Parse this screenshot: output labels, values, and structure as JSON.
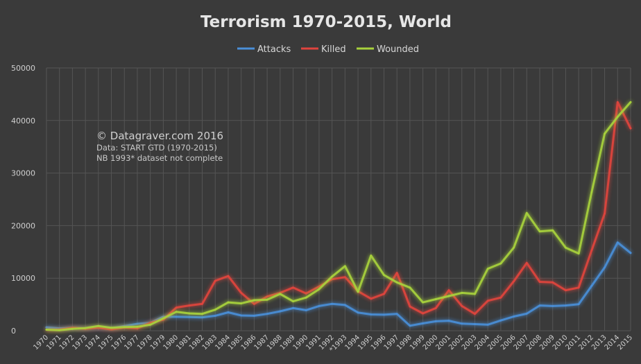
{
  "chart_data": {
    "type": "line",
    "title": "Terrorism 1970-2015, World",
    "categories": [
      "1970",
      "1971",
      "1972",
      "1973",
      "1974",
      "1975",
      "1976",
      "1977",
      "1978",
      "1979",
      "1980",
      "1981",
      "1982",
      "1983",
      "1984",
      "1985",
      "1986",
      "1987",
      "1988",
      "1989",
      "1990",
      "1991",
      "1992",
      "*1993",
      "1994",
      "1995",
      "1996",
      "1997",
      "1998",
      "1999",
      "2000",
      "2001",
      "2002",
      "2003",
      "2004",
      "2005",
      "2006",
      "2007",
      "2008",
      "2009",
      "2010",
      "2011",
      "2012",
      "2013",
      "2014",
      "2015"
    ],
    "ylim": [
      0,
      50000
    ],
    "yticks": [
      "0",
      "10000",
      "20000",
      "30000",
      "40000",
      "50000"
    ],
    "grid": true,
    "legend_position": "top-center",
    "series": [
      {
        "name": "Attacks",
        "color": "#4a8fd8",
        "values": [
          650,
          450,
          550,
          450,
          550,
          450,
          900,
          1300,
          1500,
          2650,
          2650,
          2600,
          2550,
          2850,
          3500,
          2900,
          2850,
          3200,
          3700,
          4300,
          3900,
          4700,
          5100,
          4900,
          3450,
          3100,
          3050,
          3200,
          950,
          1400,
          1800,
          1900,
          1350,
          1250,
          1150,
          1950,
          2700,
          3250,
          4800,
          4700,
          4800,
          5050,
          8550,
          12050,
          16800,
          14800
        ]
      },
      {
        "name": "Killed",
        "color": "#e0443e",
        "values": [
          180,
          200,
          550,
          350,
          550,
          250,
          600,
          450,
          1500,
          2100,
          4400,
          4800,
          5100,
          9500,
          10400,
          7200,
          5100,
          6500,
          7200,
          8200,
          7100,
          8400,
          9800,
          10200,
          7500,
          6100,
          7000,
          11000,
          4600,
          3300,
          4300,
          7700,
          4700,
          3200,
          5700,
          6300,
          9400,
          12900,
          9300,
          9200,
          7700,
          8200,
          15300,
          22300,
          43500,
          38500
        ]
      },
      {
        "name": "Wounded",
        "color": "#a8d23c",
        "values": [
          200,
          100,
          350,
          500,
          900,
          550,
          700,
          750,
          1150,
          2350,
          3600,
          3300,
          3200,
          4000,
          5400,
          5200,
          5800,
          5900,
          7000,
          5600,
          6300,
          7900,
          10300,
          12300,
          7400,
          14300,
          10600,
          9200,
          8200,
          5400,
          6000,
          6600,
          7200,
          7000,
          11800,
          12800,
          15800,
          22400,
          18900,
          19100,
          15800,
          14700,
          26400,
          37500,
          40700,
          43500
        ]
      }
    ]
  },
  "watermark": {
    "line1": "© Datagraver.com 2016",
    "line2": "Data: START GTD (1970-2015)",
    "line3": "NB 1993* dataset not complete"
  }
}
